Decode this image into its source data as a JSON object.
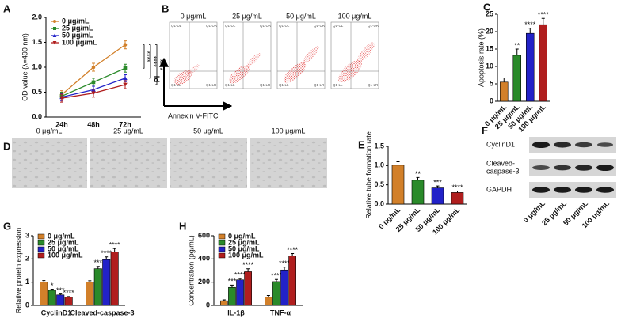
{
  "chart_data": [
    {
      "type": "line",
      "panel": "A",
      "ylabel": "OD value (λ=490 nm)",
      "categories": [
        "24h",
        "48h",
        "72h"
      ],
      "series": [
        {
          "name": "0 μg/mL",
          "color": "#d2802a",
          "marker": "circle",
          "values": [
            0.45,
            1.0,
            1.45
          ],
          "errors": [
            0.08,
            0.08,
            0.08
          ]
        },
        {
          "name": "25 μg/mL",
          "color": "#2a8a2a",
          "marker": "square",
          "values": [
            0.42,
            0.7,
            0.98
          ],
          "errors": [
            0.08,
            0.08,
            0.08
          ]
        },
        {
          "name": "50 μg/mL",
          "color": "#2222c8",
          "marker": "triangle-up",
          "values": [
            0.4,
            0.55,
            0.78
          ],
          "errors": [
            0.07,
            0.07,
            0.07
          ]
        },
        {
          "name": "100 μg/mL",
          "color": "#b01e1e",
          "marker": "triangle-down",
          "values": [
            0.38,
            0.48,
            0.65
          ],
          "errors": [
            0.08,
            0.08,
            0.08
          ]
        }
      ],
      "annotations": [
        "****",
        "****",
        "****"
      ],
      "ylim": [
        0,
        2
      ],
      "yticks": [
        {
          "value": 0,
          "label": "0.0"
        },
        0.5,
        {
          "value": 1,
          "label": "1.0"
        },
        1.5,
        {
          "value": 2,
          "label": "2.0"
        }
      ],
      "legend": "upper left"
    },
    {
      "type": "bar",
      "panel": "C",
      "ylabel": "Apoptosis rate (%)",
      "categories": [
        "0 μg/mL",
        "25 μg/mL",
        "50 μg/mL",
        "100 μg/mL"
      ],
      "values": [
        5.5,
        13.2,
        19.5,
        22
      ],
      "errors": [
        1.2,
        1.8,
        1.5,
        1.8
      ],
      "colors": [
        "#d2802a",
        "#2a8a2a",
        "#2222c8",
        "#b01e1e"
      ],
      "annotations": [
        null,
        "**",
        "****",
        "****"
      ],
      "ylim": [
        0,
        25
      ],
      "yticks": [
        0,
        5,
        10,
        15,
        20,
        25
      ]
    },
    {
      "type": "bar",
      "panel": "E",
      "ylabel": "Relative tube formation rate",
      "categories": [
        "0 μg/mL",
        "25 μg/mL",
        "50 μg/mL",
        "100 μg/mL"
      ],
      "values": [
        1.01,
        0.62,
        0.42,
        0.3
      ],
      "errors": [
        0.09,
        0.07,
        0.05,
        0.04
      ],
      "colors": [
        "#d2802a",
        "#2a8a2a",
        "#2222c8",
        "#b01e1e"
      ],
      "annotations": [
        null,
        "**",
        "***",
        "****"
      ],
      "ylim": [
        0,
        1.5
      ],
      "yticks": [
        {
          "value": 0,
          "label": "0.0"
        },
        0.5,
        {
          "value": 1,
          "label": "1.0"
        },
        1.5
      ]
    },
    {
      "type": "bar",
      "panel": "G",
      "ylabel": "Relative protein expression",
      "categories": [
        "CyclinD1",
        "Cleaved-caspase-3"
      ],
      "series": [
        {
          "name": "0 μg/mL",
          "color": "#d2802a",
          "values": [
            1.0,
            1.0
          ],
          "errors": [
            0.07,
            0.06
          ],
          "annotations": [
            null,
            null
          ]
        },
        {
          "name": "25 μg/mL",
          "color": "#2a8a2a",
          "values": [
            0.65,
            1.58
          ],
          "errors": [
            0.05,
            0.1
          ],
          "annotations": [
            "*",
            "***"
          ]
        },
        {
          "name": "50 μg/mL",
          "color": "#2222c8",
          "values": [
            0.45,
            1.97
          ],
          "errors": [
            0.04,
            0.12
          ],
          "annotations": [
            "***",
            "****"
          ]
        },
        {
          "name": "100 μg/mL",
          "color": "#b01e1e",
          "values": [
            0.35,
            2.3
          ],
          "errors": [
            0.03,
            0.15
          ],
          "annotations": [
            "****",
            "****"
          ]
        }
      ],
      "ylim": [
        0,
        3
      ],
      "yticks": [
        0,
        1,
        2,
        3
      ],
      "legend": "upper left"
    },
    {
      "type": "bar",
      "panel": "H",
      "ylabel": "Concentration (pg/mL)",
      "categories": [
        "IL-1β",
        "TNF-α"
      ],
      "series": [
        {
          "name": "0 μg/mL",
          "color": "#d2802a",
          "values": [
            40,
            70
          ],
          "errors": [
            8,
            15
          ],
          "annotations": [
            null,
            null
          ]
        },
        {
          "name": "25 μg/mL",
          "color": "#2a8a2a",
          "values": [
            155,
            205
          ],
          "errors": [
            20,
            18
          ],
          "annotations": [
            "***",
            "****"
          ]
        },
        {
          "name": "50 μg/mL",
          "color": "#2222c8",
          "values": [
            220,
            305
          ],
          "errors": [
            12,
            25
          ],
          "annotations": [
            "****",
            "****"
          ]
        },
        {
          "name": "100 μg/mL",
          "color": "#b01e1e",
          "values": [
            290,
            425
          ],
          "errors": [
            25,
            22
          ],
          "annotations": [
            "****",
            "****"
          ]
        }
      ],
      "ylim": [
        0,
        600
      ],
      "yticks": [
        0,
        200,
        400,
        600
      ],
      "legend": "upper left"
    }
  ],
  "flow_cytometry": {
    "panel": "B",
    "titles": [
      "0 μg/mL",
      "25 μg/mL",
      "50 μg/mL",
      "100 μg/mL"
    ],
    "quadrants": [
      "Q1-UL",
      "Q1-UR",
      "Q1-LL",
      "Q1-LR"
    ],
    "y_label": "PI",
    "x_label": "Annexin V-FITC"
  },
  "microscopy": {
    "panel": "D",
    "titles": [
      "0 μg/mL",
      "25 μg/mL",
      "50 μg/mL",
      "100 μg/mL"
    ]
  },
  "western_blot": {
    "panel": "F",
    "rows": [
      [
        "CyclinD1"
      ],
      [
        "Cleaved-",
        "caspase-3"
      ],
      [
        "GAPDH"
      ]
    ],
    "columns": [
      "0 μg/mL",
      "25 μg/mL",
      "50 μg/mL",
      "100 μg/mL"
    ]
  }
}
